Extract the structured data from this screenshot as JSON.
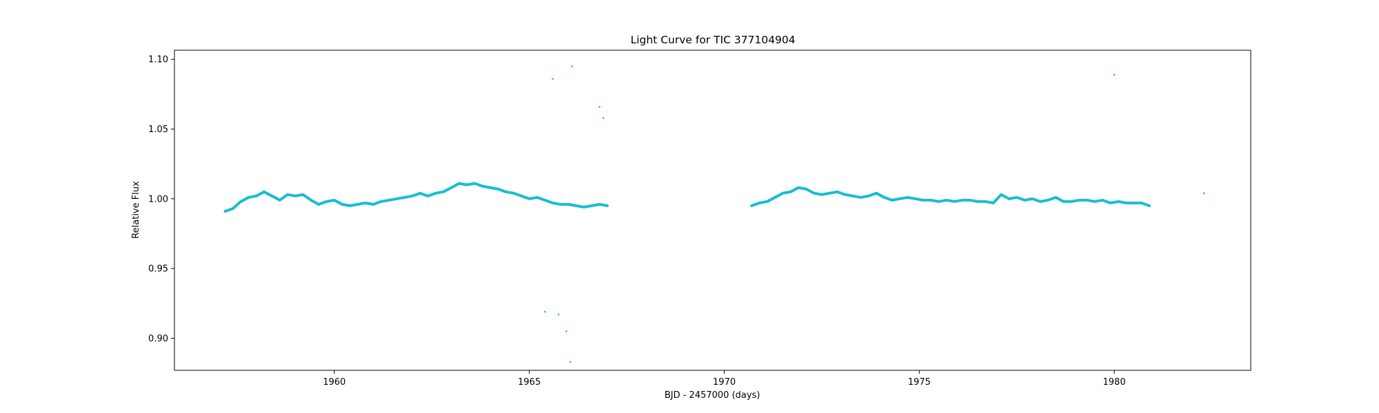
{
  "chart_data": {
    "type": "scatter",
    "title": "Light Curve for TIC 377104904",
    "xlabel": "BJD - 2457000 (days)",
    "ylabel": "Relative Flux",
    "xlim": [
      1955.9,
      1983.5
    ],
    "ylim": [
      0.877,
      1.1065
    ],
    "xticks": [
      1960,
      1965,
      1970,
      1975,
      1980
    ],
    "xtick_labels": [
      "1960",
      "1965",
      "1970",
      "1975",
      "1980"
    ],
    "yticks": [
      0.9,
      0.95,
      1.0,
      1.05,
      1.1
    ],
    "ytick_labels": [
      "0.90",
      "0.95",
      "1.00",
      "1.05",
      "1.10"
    ],
    "grid": false,
    "color": "#17becf",
    "series": [
      {
        "x": [
          1957.2,
          1957.4,
          1957.6,
          1957.8,
          1958.0,
          1958.2,
          1958.4,
          1958.6,
          1958.8,
          1959.0,
          1959.2,
          1959.4,
          1959.6,
          1959.8,
          1960.0,
          1960.2,
          1960.4,
          1960.6,
          1960.8,
          1961.0,
          1961.2,
          1961.4,
          1961.6,
          1961.8,
          1962.0,
          1962.2,
          1962.4,
          1962.6,
          1962.8,
          1963.0,
          1963.2,
          1963.4,
          1963.6,
          1963.8,
          1964.0,
          1964.2,
          1964.4,
          1964.6,
          1964.8,
          1965.0,
          1965.2,
          1965.4,
          1965.6,
          1965.8,
          1966.0,
          1966.2,
          1966.4,
          1966.6,
          1966.8,
          1967.0
        ],
        "y": [
          0.991,
          0.993,
          0.998,
          1.001,
          1.002,
          1.005,
          1.002,
          0.999,
          1.003,
          1.002,
          1.003,
          0.999,
          0.996,
          0.998,
          0.999,
          0.996,
          0.995,
          0.996,
          0.997,
          0.996,
          0.998,
          0.999,
          1.0,
          1.001,
          1.002,
          1.004,
          1.002,
          1.004,
          1.005,
          1.008,
          1.011,
          1.01,
          1.011,
          1.009,
          1.008,
          1.007,
          1.005,
          1.004,
          1.002,
          1.0,
          1.001,
          0.999,
          0.997,
          0.996,
          0.996,
          0.995,
          0.994,
          0.995,
          0.996,
          0.995
        ]
      },
      {
        "x": [
          1970.7,
          1970.9,
          1971.1,
          1971.3,
          1971.5,
          1971.7,
          1971.9,
          1972.1,
          1972.3,
          1972.5,
          1972.7,
          1972.9,
          1973.1,
          1973.3,
          1973.5,
          1973.7,
          1973.9,
          1974.1,
          1974.3,
          1974.5,
          1974.7,
          1974.9,
          1975.1,
          1975.3,
          1975.5,
          1975.7,
          1975.9,
          1976.1,
          1976.3,
          1976.5,
          1976.7,
          1976.9,
          1977.1,
          1977.3,
          1977.5,
          1977.7,
          1977.9,
          1978.1,
          1978.3,
          1978.5,
          1978.7,
          1978.9,
          1979.1,
          1979.3,
          1979.5,
          1979.7,
          1979.9,
          1980.1,
          1980.3,
          1980.5,
          1980.7,
          1980.9
        ],
        "y": [
          0.995,
          0.997,
          0.998,
          1.001,
          1.004,
          1.005,
          1.008,
          1.007,
          1.004,
          1.003,
          1.004,
          1.005,
          1.003,
          1.002,
          1.001,
          1.002,
          1.004,
          1.001,
          0.999,
          1.0,
          1.001,
          1.0,
          0.999,
          0.999,
          0.998,
          0.999,
          0.998,
          0.999,
          0.999,
          0.998,
          0.998,
          0.997,
          1.003,
          1.0,
          1.001,
          0.999,
          1.0,
          0.998,
          0.999,
          1.001,
          0.998,
          0.998,
          0.999,
          0.999,
          0.998,
          0.999,
          0.997,
          0.998,
          0.997,
          0.997,
          0.997,
          0.995
        ]
      },
      {
        "x": [
          1965.6,
          1966.1,
          1966.8,
          1966.9,
          1965.4,
          1965.75,
          1965.95,
          1966.05,
          1980.0,
          1982.3
        ],
        "y": [
          1.086,
          1.095,
          1.066,
          1.058,
          0.919,
          0.917,
          0.905,
          0.883,
          1.089,
          1.004
        ]
      }
    ]
  }
}
